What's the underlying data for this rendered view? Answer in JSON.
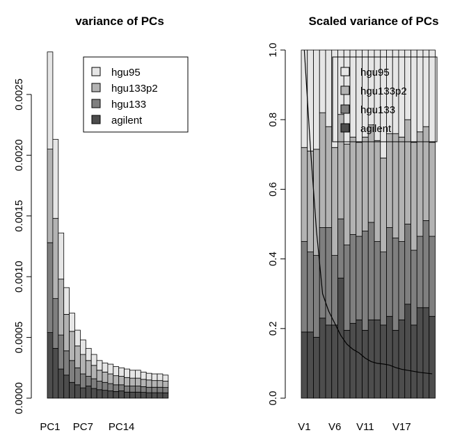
{
  "chart_data": [
    {
      "type": "bar",
      "stacked": true,
      "title": "variance of PCs",
      "xlabel": "",
      "ylabel": "",
      "ylim": [
        0,
        0.0029
      ],
      "yticks": [
        "0.0000",
        "0.0005",
        "0.0010",
        "0.0015",
        "0.0020",
        "0.0025"
      ],
      "categories": [
        "PC1",
        "PC2",
        "PC3",
        "PC4",
        "PC5",
        "PC6",
        "PC7",
        "PC8",
        "PC9",
        "PC10",
        "PC11",
        "PC12",
        "PC13",
        "PC14",
        "PC15",
        "PC16",
        "PC17",
        "PC18",
        "PC19",
        "PC20",
        "PC21",
        "PC22"
      ],
      "xtick_labels": [
        "PC1",
        "PC7",
        "PC14"
      ],
      "legend_position": "top-right",
      "series": [
        {
          "name": "agilent",
          "color": "#4d4d4d",
          "values": [
            0.00054,
            0.00041,
            0.00024,
            0.00019,
            0.00013,
            0.00011,
            8.5e-05,
            0.0001,
            8e-05,
            7e-05,
            6.5e-05,
            6e-05,
            5.5e-05,
            6e-05,
            5e-05,
            5e-05,
            5e-05,
            4.8e-05,
            4.5e-05,
            4.5e-05,
            4.5e-05,
            4.4e-05
          ]
        },
        {
          "name": "hgu133",
          "color": "#7f7f7f",
          "values": [
            0.00074,
            0.00041,
            0.00028,
            0.0002,
            0.00018,
            0.00014,
            0.000115,
            8e-05,
            8e-05,
            7e-05,
            6.5e-05,
            6e-05,
            5.5e-05,
            5e-05,
            5e-05,
            5e-05,
            5e-05,
            4.7e-05,
            4.5e-05,
            4.5e-05,
            4.5e-05,
            4.4e-05
          ]
        },
        {
          "name": "hgu133p2",
          "color": "#b3b3b3",
          "values": [
            0.00077,
            0.00066,
            0.00046,
            0.0003,
            0.00024,
            0.00018,
            0.00016,
            0.00013,
            0.00011,
            9e-05,
            8.5e-05,
            8e-05,
            7.5e-05,
            7e-05,
            7e-05,
            6.5e-05,
            6.5e-05,
            6e-05,
            6e-05,
            5.5e-05,
            5.5e-05,
            5.2e-05
          ]
        },
        {
          "name": "hgu95",
          "color": "#e6e6e6",
          "values": [
            0.0008,
            0.00065,
            0.00038,
            0.00022,
            0.00015,
            0.00013,
            0.00012,
            0.0001,
            9e-05,
            8e-05,
            7.5e-05,
            8e-05,
            7.5e-05,
            7e-05,
            7e-05,
            6.5e-05,
            6.5e-05,
            6e-05,
            5.5e-05,
            5.5e-05,
            5.5e-05,
            5e-05
          ]
        }
      ]
    },
    {
      "type": "bar",
      "stacked": true,
      "title": "Scaled variance of PCs",
      "xlabel": "",
      "ylabel": "",
      "ylim": [
        0,
        1.0
      ],
      "yticks": [
        "0.0",
        "0.2",
        "0.4",
        "0.6",
        "0.8",
        "1.0"
      ],
      "categories": [
        "V1",
        "V2",
        "V3",
        "V4",
        "V5",
        "V6",
        "V7",
        "V8",
        "V9",
        "V10",
        "V11",
        "V12",
        "V13",
        "V14",
        "V15",
        "V16",
        "V17",
        "V18",
        "V19",
        "V20",
        "V21",
        "V22"
      ],
      "xtick_labels": [
        "V1",
        "V6",
        "V11",
        "V17"
      ],
      "legend_position": "top-right",
      "series": [
        {
          "name": "agilent",
          "color": "#4d4d4d",
          "values": [
            0.19,
            0.19,
            0.175,
            0.23,
            0.21,
            0.21,
            0.345,
            0.195,
            0.215,
            0.225,
            0.195,
            0.225,
            0.225,
            0.21,
            0.235,
            0.195,
            0.225,
            0.27,
            0.21,
            0.26,
            0.26,
            0.235
          ]
        },
        {
          "name": "hgu133",
          "color": "#7f7f7f",
          "values": [
            0.26,
            0.23,
            0.235,
            0.26,
            0.28,
            0.2,
            0.17,
            0.245,
            0.255,
            0.24,
            0.285,
            0.28,
            0.225,
            0.21,
            0.255,
            0.265,
            0.225,
            0.23,
            0.215,
            0.205,
            0.25,
            0.23
          ]
        },
        {
          "name": "hgu133p2",
          "color": "#b3b3b3",
          "values": [
            0.27,
            0.29,
            0.305,
            0.33,
            0.29,
            0.31,
            0.3,
            0.29,
            0.28,
            0.27,
            0.27,
            0.28,
            0.29,
            0.27,
            0.27,
            0.3,
            0.3,
            0.3,
            0.31,
            0.3,
            0.27,
            0.27
          ]
        },
        {
          "name": "hgu95",
          "color": "#e6e6e6",
          "values": [
            0.28,
            0.29,
            0.285,
            0.18,
            0.22,
            0.28,
            0.185,
            0.27,
            0.25,
            0.265,
            0.25,
            0.215,
            0.26,
            0.31,
            0.24,
            0.24,
            0.25,
            0.2,
            0.265,
            0.235,
            0.22,
            0.265
          ]
        }
      ],
      "line": {
        "name": "",
        "color": "#000000",
        "values": [
          1.0,
          0.72,
          0.48,
          0.3,
          0.25,
          0.215,
          0.18,
          0.155,
          0.14,
          0.13,
          0.115,
          0.105,
          0.1,
          0.098,
          0.095,
          0.088,
          0.083,
          0.08,
          0.077,
          0.074,
          0.072,
          0.07
        ]
      }
    }
  ]
}
